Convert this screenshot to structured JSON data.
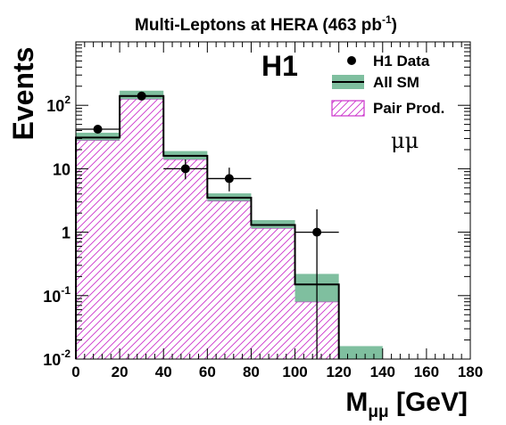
{
  "chart_data": {
    "type": "histogram",
    "title": "Multi-Leptons at HERA (463 pb",
    "title_sup": "-1",
    "title_tail": ")",
    "experiment_label": "H1",
    "channel_label": "μμ",
    "xlabel": "M",
    "xlabel_sub": "μμ",
    "xlabel_unit": " [GeV]",
    "ylabel": "Events",
    "xlim": [
      0,
      180
    ],
    "ylim": [
      0.01,
      1000
    ],
    "yscale": "log",
    "x_ticks": [
      "0",
      "20",
      "40",
      "60",
      "80",
      "100",
      "120",
      "140",
      "160",
      "180"
    ],
    "y_ticks": [
      {
        "value": 0.01,
        "base": "10",
        "exp": "-2"
      },
      {
        "value": 0.1,
        "base": "10",
        "exp": "-1"
      },
      {
        "value": 1,
        "base": "1",
        "exp": ""
      },
      {
        "value": 10,
        "base": "10",
        "exp": ""
      },
      {
        "value": 100,
        "base": "10",
        "exp": "2"
      }
    ],
    "bin_edges": [
      0,
      20,
      40,
      60,
      80,
      100,
      120,
      140,
      160,
      180
    ],
    "all_sm": {
      "name": "All SM",
      "values": [
        31,
        140,
        16,
        3.5,
        1.3,
        0.15,
        0.012,
        0,
        0
      ],
      "band_low": [
        28,
        125,
        14,
        3.1,
        1.15,
        0.08,
        0.01,
        0,
        0
      ],
      "band_high": [
        37,
        170,
        19,
        4.1,
        1.55,
        0.22,
        0.016,
        0,
        0
      ],
      "color": "#7fbf9f"
    },
    "pair_prod": {
      "name": "Pair Prod.",
      "values": [
        28,
        125,
        14,
        3.1,
        1.15,
        0.08,
        0,
        0,
        0
      ],
      "color": "#cc33cc"
    },
    "h1_data": {
      "name": "H1 Data",
      "points": [
        {
          "x": 10,
          "y": 42,
          "yerr_low": 36,
          "yerr_high": 49
        },
        {
          "x": 30,
          "y": 140,
          "yerr_low": 128,
          "yerr_high": 152
        },
        {
          "x": 50,
          "y": 10,
          "yerr_low": 6.8,
          "yerr_high": 14
        },
        {
          "x": 70,
          "y": 7,
          "yerr_low": 4.4,
          "yerr_high": 10.4
        },
        {
          "x": 110,
          "y": 1,
          "yerr_low": 0.01,
          "yerr_high": 2.3
        }
      ]
    },
    "legend": {
      "placement": "top-right",
      "entries": [
        "H1 Data",
        "All SM",
        "Pair Prod."
      ]
    },
    "grid": false
  }
}
